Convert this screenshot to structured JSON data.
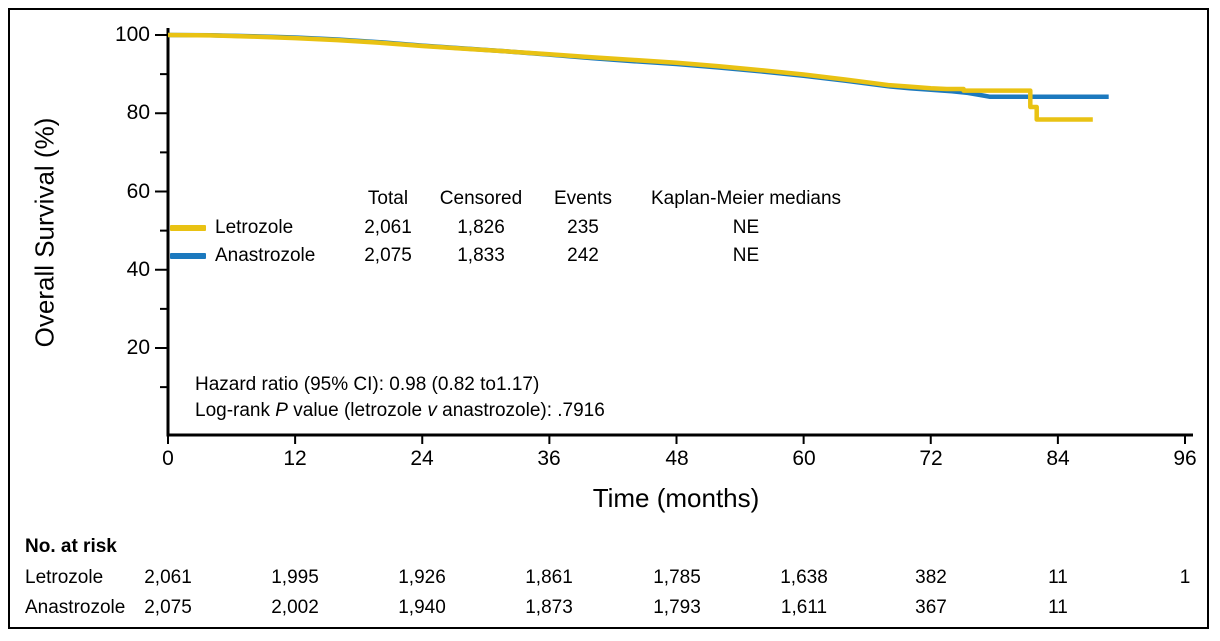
{
  "colors": {
    "letrozole": "#E9C213",
    "anastrozole": "#1C79BE",
    "axis": "#000000"
  },
  "chart_data": {
    "type": "line",
    "subtype": "kaplan-meier",
    "xlabel": "Time (months)",
    "ylabel": "Overall Survival (%)",
    "xlim": [
      0,
      96
    ],
    "ylim": [
      0,
      102
    ],
    "x_ticks": [
      0,
      12,
      24,
      36,
      48,
      60,
      72,
      84,
      96
    ],
    "y_ticks": [
      100,
      80,
      60,
      40,
      20
    ],
    "y_minor_ticks": [
      90,
      70,
      50,
      30,
      10
    ],
    "grid": false,
    "series": [
      {
        "name": "Anastrozole",
        "color": "#1C79BE",
        "points": [
          [
            0,
            100
          ],
          [
            4,
            99.95
          ],
          [
            8,
            99.7
          ],
          [
            12,
            99.35
          ],
          [
            16,
            98.85
          ],
          [
            20,
            98.15
          ],
          [
            24,
            97.3
          ],
          [
            28,
            96.55
          ],
          [
            32,
            95.8
          ],
          [
            36,
            95.0
          ],
          [
            40,
            94.1
          ],
          [
            44,
            93.3
          ],
          [
            48,
            92.6
          ],
          [
            52,
            91.7
          ],
          [
            56,
            90.7
          ],
          [
            60,
            89.6
          ],
          [
            64,
            88.3
          ],
          [
            66,
            87.6
          ],
          [
            68,
            86.9
          ],
          [
            70,
            86.4
          ],
          [
            72,
            86.0
          ],
          [
            74,
            85.6
          ],
          [
            75.5,
            85.2
          ],
          [
            76.6,
            84.7
          ],
          [
            77.6,
            84.2
          ],
          [
            88.8,
            84.2
          ]
        ]
      },
      {
        "name": "Letrozole",
        "color": "#E9C213",
        "points": [
          [
            0,
            100
          ],
          [
            4,
            99.9
          ],
          [
            8,
            99.6
          ],
          [
            12,
            99.2
          ],
          [
            16,
            98.7
          ],
          [
            20,
            98.0
          ],
          [
            24,
            97.2
          ],
          [
            28,
            96.5
          ],
          [
            32,
            95.8
          ],
          [
            36,
            95.1
          ],
          [
            40,
            94.3
          ],
          [
            44,
            93.6
          ],
          [
            48,
            92.9
          ],
          [
            52,
            92.0
          ],
          [
            56,
            91.0
          ],
          [
            60,
            89.9
          ],
          [
            64,
            88.6
          ],
          [
            66,
            87.9
          ],
          [
            68,
            87.2
          ],
          [
            70,
            86.8
          ],
          [
            72,
            86.4
          ],
          [
            73.5,
            86.2
          ],
          [
            75.1,
            86.2
          ],
          [
            75.1,
            85.8
          ],
          [
            81.4,
            85.8
          ],
          [
            81.4,
            81.6
          ],
          [
            82,
            81.6
          ],
          [
            82,
            78.4
          ],
          [
            87.3,
            78.4
          ]
        ]
      }
    ]
  },
  "legend_table": {
    "headers": {
      "total": "Total",
      "censored": "Censored",
      "events": "Events",
      "km_medians": "Kaplan-Meier medians"
    },
    "rows": [
      {
        "name": "Letrozole",
        "total": "2,061",
        "censored": "1,826",
        "events": "235",
        "km_median": "NE"
      },
      {
        "name": "Anastrozole",
        "total": "2,075",
        "censored": "1,833",
        "events": "242",
        "km_median": "NE"
      }
    ]
  },
  "stats": {
    "hazard_ratio": "Hazard ratio (95% CI): 0.98 (0.82 to1.17)",
    "logrank_prefix": "Log-rank ",
    "logrank_p": "P",
    "logrank_mid": " value (letrozole ",
    "logrank_v": "v",
    "logrank_suffix": " anastrozole): .7916"
  },
  "at_risk": {
    "title": "No. at risk",
    "rows": [
      {
        "name": "Letrozole",
        "values": [
          "2,061",
          "1,995",
          "1,926",
          "1,861",
          "1,785",
          "1,638",
          "382",
          "11",
          "1"
        ]
      },
      {
        "name": "Anastrozole",
        "values": [
          "2,075",
          "2,002",
          "1,940",
          "1,873",
          "1,793",
          "1,611",
          "367",
          "11"
        ]
      }
    ]
  }
}
